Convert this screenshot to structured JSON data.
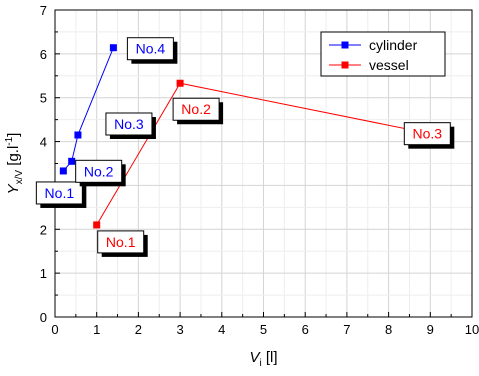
{
  "chart_data": {
    "type": "line",
    "title": "",
    "xlabel": {
      "main": "V",
      "sub": "i",
      "unit": " [l]"
    },
    "ylabel": {
      "main": "Y",
      "sub": "x/V",
      "unit_pre": " [g.l",
      "unit_sup": "-1",
      "unit_post": "]"
    },
    "xlim": [
      0,
      10
    ],
    "ylim": [
      0,
      7
    ],
    "xticks": [
      0,
      1,
      2,
      3,
      4,
      5,
      6,
      7,
      8,
      9,
      10
    ],
    "yticks": [
      0,
      1,
      2,
      3,
      4,
      5,
      6,
      7
    ],
    "grid": true,
    "legend_position": "top-right",
    "series": [
      {
        "name": "cylinder",
        "color": "#0000ff",
        "marker": "square",
        "points": [
          {
            "x": 0.2,
            "y": 3.33,
            "label": "No.1"
          },
          {
            "x": 0.4,
            "y": 3.55,
            "label": "No.2"
          },
          {
            "x": 0.55,
            "y": 4.15,
            "label": "No.3"
          },
          {
            "x": 1.4,
            "y": 6.14,
            "label": "No.4"
          }
        ]
      },
      {
        "name": "vessel",
        "color": "#ff0000",
        "marker": "square",
        "points": [
          {
            "x": 1,
            "y": 2.1,
            "label": "No.1"
          },
          {
            "x": 3,
            "y": 5.33,
            "label": "No.2"
          },
          {
            "x": 9,
            "y": 4.18,
            "label": "No.3"
          }
        ]
      }
    ]
  }
}
